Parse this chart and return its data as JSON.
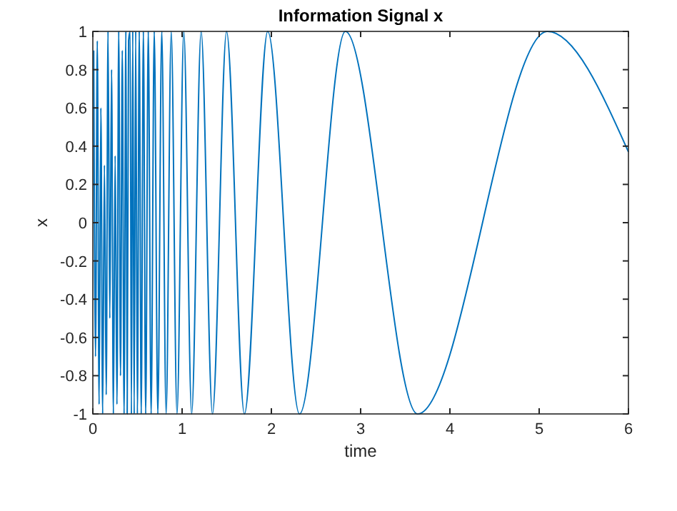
{
  "chart_data": {
    "type": "line",
    "title": "Information Signal x",
    "xlabel": "time",
    "ylabel": "x",
    "xlim": [
      0,
      6
    ],
    "ylim": [
      -1,
      1
    ],
    "xticks": [
      0,
      1,
      2,
      3,
      4,
      5,
      6
    ],
    "yticks": [
      -1,
      -0.8,
      -0.6,
      -0.4,
      -0.2,
      0,
      0.2,
      0.4,
      0.6,
      0.8,
      1
    ],
    "grid": false,
    "series": [
      {
        "color": "#0072bd",
        "x": [
          0.01,
          0.03,
          0.05,
          0.07,
          0.09,
          0.11,
          0.13,
          0.15,
          0.17,
          0.19,
          0.21,
          0.23,
          0.25,
          0.27,
          0.29,
          0.31,
          0.33,
          0.35,
          0.37,
          0.385,
          0.4,
          0.418,
          0.432,
          0.447,
          0.463,
          0.48,
          0.499,
          0.52,
          0.542,
          0.566,
          0.592,
          0.621,
          0.653,
          0.688,
          0.728,
          0.772,
          0.821,
          0.878,
          0.943,
          1.019,
          1.107,
          1.213,
          1.34,
          1.498,
          1.698,
          1.959,
          2.315,
          2.829,
          3.638,
          5.093,
          6
        ],
        "values": [
          0.9,
          -0.7,
          0.95,
          -0.95,
          0.6,
          -1,
          0.3,
          -0.9,
          1,
          -0.5,
          0.8,
          -1,
          0.35,
          -0.95,
          1,
          -0.8,
          0.9,
          -1,
          1,
          -1,
          0.95,
          1,
          -1,
          1,
          -1,
          1,
          -1,
          1,
          -1,
          1,
          -1,
          1,
          -1,
          1,
          -1,
          1,
          -1,
          1,
          -1,
          1,
          -1,
          1,
          -1,
          1,
          -1,
          1,
          -1,
          1,
          -1,
          1,
          0.37
        ]
      }
    ]
  }
}
